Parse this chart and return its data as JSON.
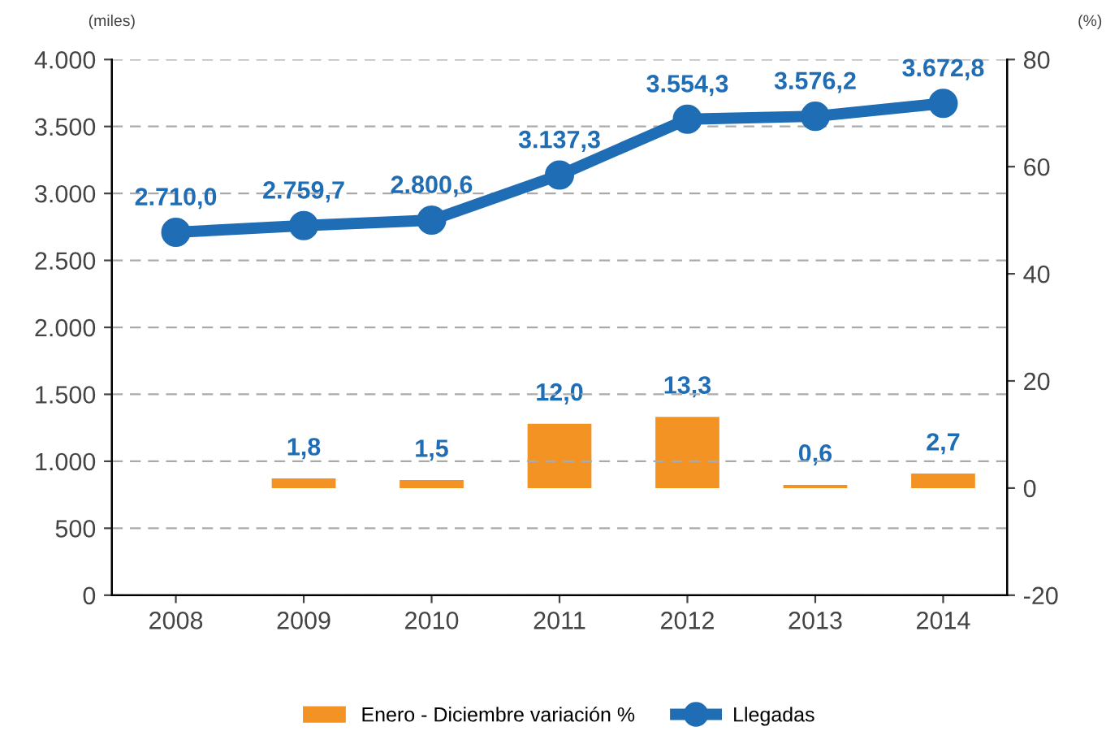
{
  "chart_data": {
    "type": "bar",
    "categories": [
      "2008",
      "2009",
      "2010",
      "2011",
      "2012",
      "2013",
      "2014"
    ],
    "ylabel": "(miles)",
    "y2label": "(%)",
    "series": [
      {
        "name": "Enero - Diciembre variación %",
        "axis": "y2",
        "color": "#f39324",
        "values": [
          null,
          1.8,
          1.5,
          12.0,
          13.3,
          0.6,
          2.7
        ],
        "value_labels": [
          null,
          "1,8",
          "1,5",
          "12,0",
          "13,3",
          "0,6",
          "2,7"
        ]
      },
      {
        "name": "Llegadas",
        "type": "line",
        "color": "#1f6db5",
        "marker": "circle",
        "values": [
          2710.0,
          2759.7,
          2800.6,
          3137.3,
          3554.3,
          3576.2,
          3672.8
        ],
        "value_labels": [
          "2.710,0",
          "2.759,7",
          "2.800,6",
          "3.137,3",
          "3.554,3",
          "3.576,2",
          "3.672,8"
        ]
      }
    ],
    "ylim": [
      0,
      4000
    ],
    "yticks": [
      0,
      500,
      {
        "value": 1000,
        "label": "1.000"
      },
      {
        "value": 1500,
        "label": "1.500"
      },
      {
        "value": 2000,
        "label": "2.000"
      },
      {
        "value": 2500,
        "label": "2.500"
      },
      {
        "value": 3000,
        "label": "3.000"
      },
      {
        "value": 3500,
        "label": "3.500"
      },
      {
        "value": 4000,
        "label": "4.000"
      }
    ],
    "y2lim": [
      -20,
      80
    ],
    "y2ticks": [
      -20,
      0,
      20,
      40,
      60,
      80
    ],
    "grid": "y",
    "legend": "bottom"
  }
}
